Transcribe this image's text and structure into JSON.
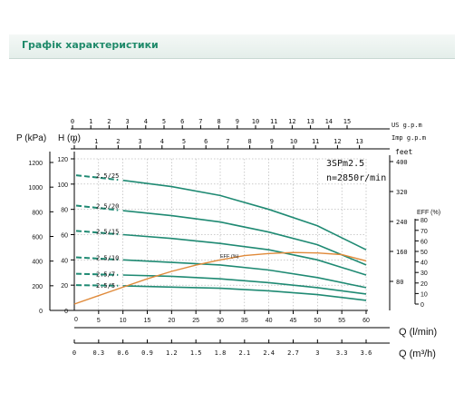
{
  "header": {
    "title": "Графік характеристики"
  },
  "chart_data": {
    "type": "line",
    "model": "3SPm2.5",
    "speed": "n=2850r/min",
    "x_axis": {
      "label": "Q (l/min)",
      "min": 0,
      "max": 60,
      "ticks": [
        5,
        10,
        15,
        20,
        25,
        30,
        35,
        40,
        45,
        50,
        55,
        60
      ],
      "origin_label": "0"
    },
    "q_m3h_axis": {
      "label": "Q (m³/h)",
      "ticks": [
        "0",
        "0.3",
        "0.6",
        "0.9",
        "1.2",
        "1.5",
        "1.8",
        "2.1",
        "2.4",
        "2.7",
        "3",
        "3.3",
        "3.6"
      ]
    },
    "us_gpm_axis": {
      "label": "US g.p.m",
      "ticks": [
        "0",
        "1",
        "2",
        "3",
        "4",
        "5",
        "6",
        "7",
        "8",
        "9",
        "10",
        "11",
        "12",
        "13",
        "14",
        "15"
      ]
    },
    "imp_gpm_axis": {
      "label": "Imp g.p.m",
      "ticks": [
        "0",
        "1",
        "2",
        "3",
        "4",
        "5",
        "6",
        "7",
        "8",
        "9",
        "10",
        "11",
        "12",
        "13"
      ]
    },
    "h_axis": {
      "label": "H (m)",
      "min": 0,
      "max": 120,
      "ticks": [
        0,
        20,
        40,
        60,
        80,
        100,
        120
      ]
    },
    "p_axis": {
      "label": "P (kPa)",
      "ticks": [
        "0",
        "200",
        "400",
        "600",
        "800",
        "1000",
        "1200"
      ]
    },
    "feet_axis": {
      "label": "feet",
      "ticks": [
        "80",
        "160",
        "240",
        "320",
        "400"
      ]
    },
    "eff_axis": {
      "label": "EFF (%)",
      "ticks": [
        "0",
        "10",
        "20",
        "30",
        "40",
        "50",
        "60",
        "70",
        "80"
      ]
    },
    "eff_curve_label": "EFF (%)",
    "series": [
      {
        "name": "2.5/25",
        "q": [
          0,
          10,
          20,
          30,
          40,
          50,
          60
        ],
        "h": [
          107,
          103,
          98,
          91,
          80,
          67,
          48
        ]
      },
      {
        "name": "2.5/20",
        "q": [
          0,
          10,
          20,
          30,
          40,
          50,
          60
        ],
        "h": [
          83,
          79,
          75,
          70,
          62,
          52,
          36
        ]
      },
      {
        "name": "2.5/15",
        "q": [
          0,
          10,
          20,
          30,
          40,
          50,
          60
        ],
        "h": [
          63,
          60,
          57,
          53,
          48,
          40,
          28
        ]
      },
      {
        "name": "2.5/10",
        "q": [
          0,
          10,
          20,
          30,
          40,
          50,
          60
        ],
        "h": [
          42,
          40,
          38,
          36,
          32,
          26,
          18
        ]
      },
      {
        "name": "2.5/7",
        "q": [
          0,
          10,
          20,
          30,
          40,
          50,
          60
        ],
        "h": [
          29,
          28,
          27,
          25,
          22,
          18,
          13
        ]
      },
      {
        "name": "2.5/5",
        "q": [
          0,
          10,
          20,
          30,
          40,
          50,
          60
        ],
        "h": [
          20,
          19.5,
          18.5,
          17.5,
          15.5,
          12.5,
          8
        ]
      }
    ],
    "efficiency": {
      "q": [
        0,
        5,
        10,
        15,
        20,
        25,
        30,
        35,
        40,
        45,
        50,
        55,
        60
      ],
      "eff": [
        0,
        8,
        16,
        24,
        31,
        37,
        42,
        46,
        48,
        49,
        48.5,
        47,
        41
      ]
    }
  }
}
